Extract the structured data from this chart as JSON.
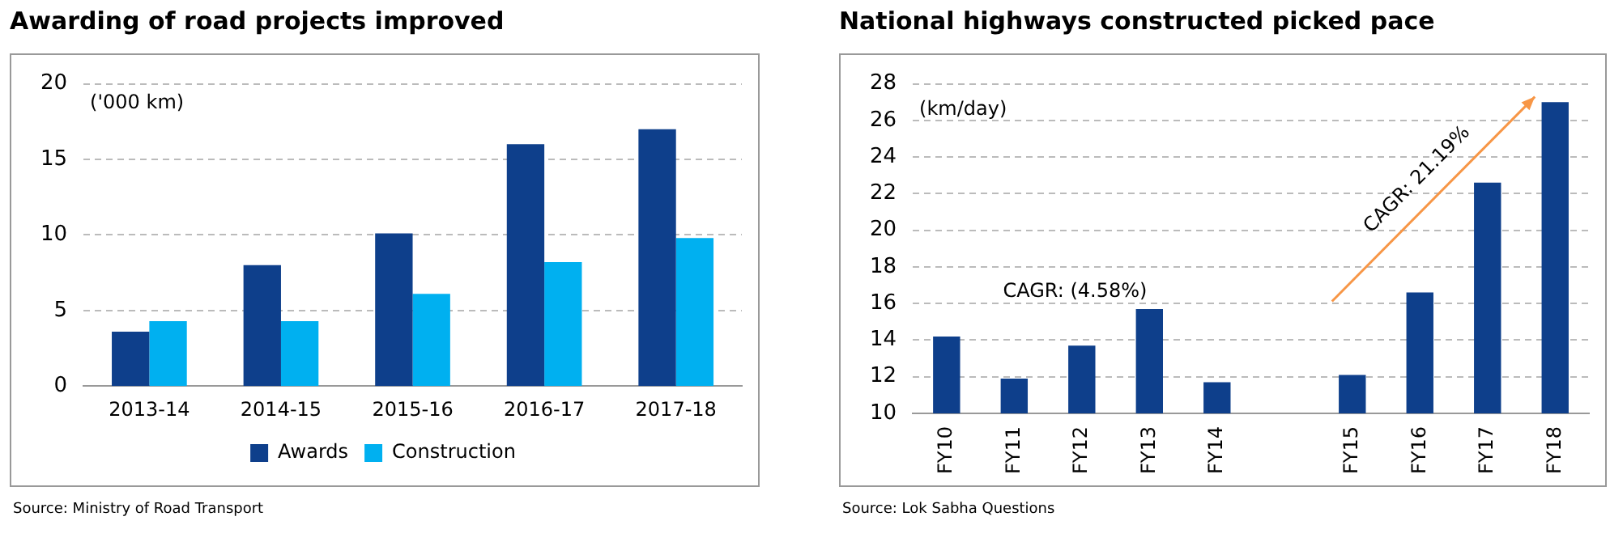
{
  "chart_data": [
    {
      "type": "bar",
      "title": "Awarding of road projects improved",
      "ylabel": "('000 km)",
      "categories": [
        "2013-14",
        "2014-15",
        "2015-16",
        "2016-17",
        "2017-18"
      ],
      "series": [
        {
          "name": "Awards",
          "color": "#0e3f8b",
          "values": [
            3.6,
            8.0,
            10.1,
            16.0,
            17.0
          ]
        },
        {
          "name": "Construction",
          "color": "#00b0f0",
          "values": [
            4.3,
            4.3,
            6.1,
            8.2,
            9.8
          ]
        }
      ],
      "ylim": [
        0,
        20
      ],
      "yticks": [
        0,
        5,
        10,
        15,
        20
      ],
      "grid": "y",
      "legend": "bottom",
      "annotations": [
        "Source: Ministry of Road Transport"
      ]
    },
    {
      "type": "bar",
      "title": "National highways constructed picked pace",
      "ylabel": "(km/day)",
      "categories": [
        "FY10",
        "FY11",
        "FY12",
        "FY13",
        "FY14",
        null,
        "FY15",
        "FY16",
        "FY17",
        "FY18"
      ],
      "series": [
        {
          "color": "#0e3f8b",
          "values": [
            14.2,
            11.9,
            13.7,
            15.7,
            11.7,
            null,
            12.1,
            16.6,
            22.6,
            27.0
          ]
        }
      ],
      "ylim": [
        10,
        28
      ],
      "yticks": [
        10,
        12,
        14,
        16,
        18,
        20,
        22,
        24,
        26,
        28
      ],
      "grid": "y",
      "legend": false,
      "annotations": [
        "CAGR: (4.58%)",
        "CAGR: 21.19%",
        "Source: Lok Sabha Questions"
      ]
    }
  ]
}
